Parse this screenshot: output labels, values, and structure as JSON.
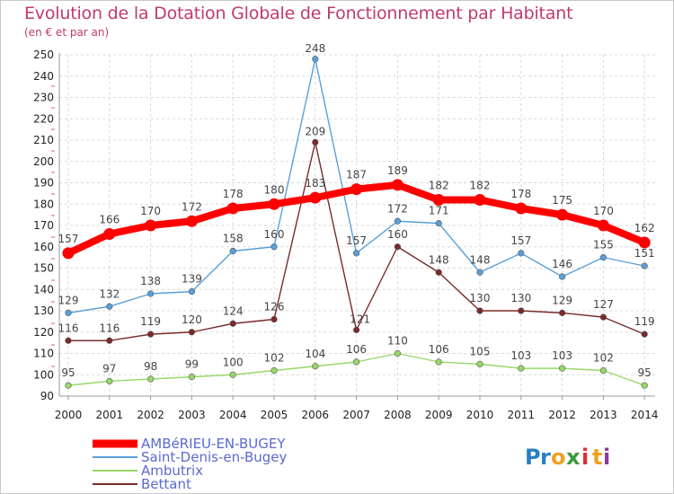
{
  "title": "Evolution de la Dotation Globale de Fonctionnement par Habitant",
  "subtitle": "(en € et par an)",
  "logo": {
    "text": "Proxiti",
    "letters": [
      "P",
      "r",
      "o",
      "x",
      "i",
      "t",
      "i"
    ],
    "colors": [
      "#2a7fc0",
      "#2a7fc0",
      "#f0a020",
      "#3a9a3a",
      "#e03030",
      "#f0a020",
      "#8a3a9a"
    ]
  },
  "chart_data": {
    "type": "line",
    "title": "Evolution de la Dotation Globale de Fonctionnement par Habitant",
    "subtitle": "(en € et par an)",
    "xlabel": "",
    "ylabel": "",
    "x": [
      "2000",
      "2001",
      "2002",
      "2003",
      "2004",
      "2005",
      "2006",
      "2007",
      "2008",
      "2009",
      "2010",
      "2011",
      "2012",
      "2013",
      "2014"
    ],
    "ylim": [
      90,
      250
    ],
    "yticks": [
      90,
      100,
      110,
      120,
      130,
      140,
      150,
      160,
      170,
      180,
      190,
      200,
      210,
      220,
      230,
      240,
      250
    ],
    "grid": true,
    "legend_position": "bottom-left",
    "series": [
      {
        "name": "AMBéRIEU-EN-BUGEY",
        "color": "#ff0000",
        "values": [
          157,
          166,
          170,
          172,
          178,
          180,
          183,
          187,
          189,
          182,
          182,
          178,
          175,
          170,
          162
        ]
      },
      {
        "name": "Saint-Denis-en-Bugey",
        "color": "#5aa0d8",
        "values": [
          129,
          132,
          138,
          139,
          158,
          160,
          248,
          157,
          172,
          171,
          148,
          157,
          146,
          155,
          151
        ]
      },
      {
        "name": "Ambutrix",
        "color": "#98d868",
        "values": [
          95,
          97,
          98,
          99,
          100,
          102,
          104,
          106,
          110,
          106,
          105,
          103,
          103,
          102,
          95
        ]
      },
      {
        "name": "Bettant",
        "color": "#7a2a2a",
        "values": [
          116,
          116,
          119,
          120,
          124,
          126,
          209,
          121,
          160,
          148,
          130,
          130,
          129,
          127,
          119
        ]
      }
    ]
  }
}
